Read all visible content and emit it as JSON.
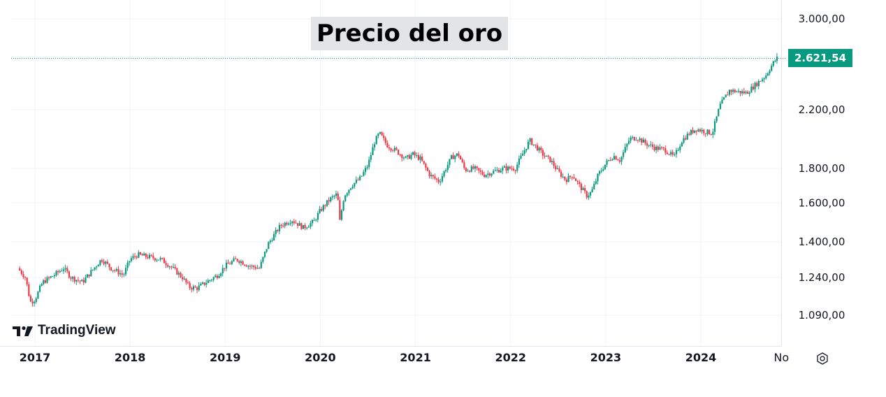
{
  "chart_data": {
    "type": "candlestick",
    "title": "Precio del oro",
    "watermark": "TradingView",
    "last_price_label": "2.621,54",
    "last_price": 2621.54,
    "y_ticks": [
      {
        "value": 3000,
        "label": "3.000,00"
      },
      {
        "value": 2200,
        "label": "2.200,00"
      },
      {
        "value": 1800,
        "label": "1.800,00"
      },
      {
        "value": 1600,
        "label": "1.600,00"
      },
      {
        "value": 1400,
        "label": "1.400,00"
      },
      {
        "value": 1240,
        "label": "1.240,00"
      },
      {
        "value": 1090,
        "label": "1.090,00"
      }
    ],
    "x_ticks": [
      {
        "value": 2017,
        "label": "2017"
      },
      {
        "value": 2018,
        "label": "2018"
      },
      {
        "value": 2019,
        "label": "2019"
      },
      {
        "value": 2020,
        "label": "2020"
      },
      {
        "value": 2021,
        "label": "2021"
      },
      {
        "value": 2022,
        "label": "2022"
      },
      {
        "value": 2023,
        "label": "2023"
      },
      {
        "value": 2024,
        "label": "2024"
      },
      {
        "value": 2024.84,
        "label": "Nov"
      }
    ],
    "x_range": [
      2016.8,
      2024.96
    ],
    "y_range_log": true,
    "grid": true,
    "colors": {
      "up": "#089981",
      "down": "#f23645",
      "price_tag": "#089981",
      "title_bg": "#e3e4e6"
    },
    "price_path": [
      [
        2016.82,
        1280
      ],
      [
        2016.9,
        1240
      ],
      [
        2016.95,
        1140
      ],
      [
        2017.0,
        1150
      ],
      [
        2017.08,
        1220
      ],
      [
        2017.2,
        1250
      ],
      [
        2017.3,
        1280
      ],
      [
        2017.38,
        1240
      ],
      [
        2017.5,
        1220
      ],
      [
        2017.6,
        1270
      ],
      [
        2017.7,
        1320
      ],
      [
        2017.8,
        1280
      ],
      [
        2017.93,
        1250
      ],
      [
        2018.0,
        1320
      ],
      [
        2018.08,
        1340
      ],
      [
        2018.2,
        1330
      ],
      [
        2018.32,
        1320
      ],
      [
        2018.42,
        1290
      ],
      [
        2018.55,
        1240
      ],
      [
        2018.62,
        1200
      ],
      [
        2018.7,
        1195
      ],
      [
        2018.8,
        1220
      ],
      [
        2018.92,
        1250
      ],
      [
        2019.0,
        1290
      ],
      [
        2019.12,
        1320
      ],
      [
        2019.25,
        1290
      ],
      [
        2019.36,
        1280
      ],
      [
        2019.45,
        1390
      ],
      [
        2019.58,
        1480
      ],
      [
        2019.7,
        1510
      ],
      [
        2019.82,
        1470
      ],
      [
        2019.93,
        1500
      ],
      [
        2020.0,
        1560
      ],
      [
        2020.1,
        1620
      ],
      [
        2020.18,
        1650
      ],
      [
        2020.2,
        1490
      ],
      [
        2020.25,
        1640
      ],
      [
        2020.33,
        1700
      ],
      [
        2020.42,
        1740
      ],
      [
        2020.5,
        1820
      ],
      [
        2020.57,
        1970
      ],
      [
        2020.62,
        2030
      ],
      [
        2020.7,
        1950
      ],
      [
        2020.8,
        1910
      ],
      [
        2020.9,
        1860
      ],
      [
        2020.97,
        1890
      ],
      [
        2021.05,
        1860
      ],
      [
        2021.15,
        1760
      ],
      [
        2021.25,
        1720
      ],
      [
        2021.38,
        1870
      ],
      [
        2021.45,
        1890
      ],
      [
        2021.52,
        1790
      ],
      [
        2021.62,
        1800
      ],
      [
        2021.72,
        1760
      ],
      [
        2021.82,
        1780
      ],
      [
        2021.93,
        1800
      ],
      [
        2022.05,
        1800
      ],
      [
        2022.15,
        1920
      ],
      [
        2022.2,
        1980
      ],
      [
        2022.28,
        1930
      ],
      [
        2022.35,
        1880
      ],
      [
        2022.42,
        1850
      ],
      [
        2022.5,
        1780
      ],
      [
        2022.58,
        1730
      ],
      [
        2022.65,
        1760
      ],
      [
        2022.72,
        1700
      ],
      [
        2022.8,
        1640
      ],
      [
        2022.85,
        1660
      ],
      [
        2022.92,
        1760
      ],
      [
        2023.0,
        1830
      ],
      [
        2023.08,
        1880
      ],
      [
        2023.15,
        1850
      ],
      [
        2023.25,
        1990
      ],
      [
        2023.33,
        2000
      ],
      [
        2023.42,
        1960
      ],
      [
        2023.52,
        1930
      ],
      [
        2023.62,
        1920
      ],
      [
        2023.72,
        1870
      ],
      [
        2023.8,
        1980
      ],
      [
        2023.88,
        2030
      ],
      [
        2023.95,
        2060
      ],
      [
        2024.05,
        2040
      ],
      [
        2024.12,
        2030
      ],
      [
        2024.2,
        2230
      ],
      [
        2024.3,
        2350
      ],
      [
        2024.38,
        2340
      ],
      [
        2024.48,
        2330
      ],
      [
        2024.58,
        2400
      ],
      [
        2024.68,
        2470
      ],
      [
        2024.76,
        2580
      ],
      [
        2024.8,
        2621.54
      ]
    ]
  }
}
